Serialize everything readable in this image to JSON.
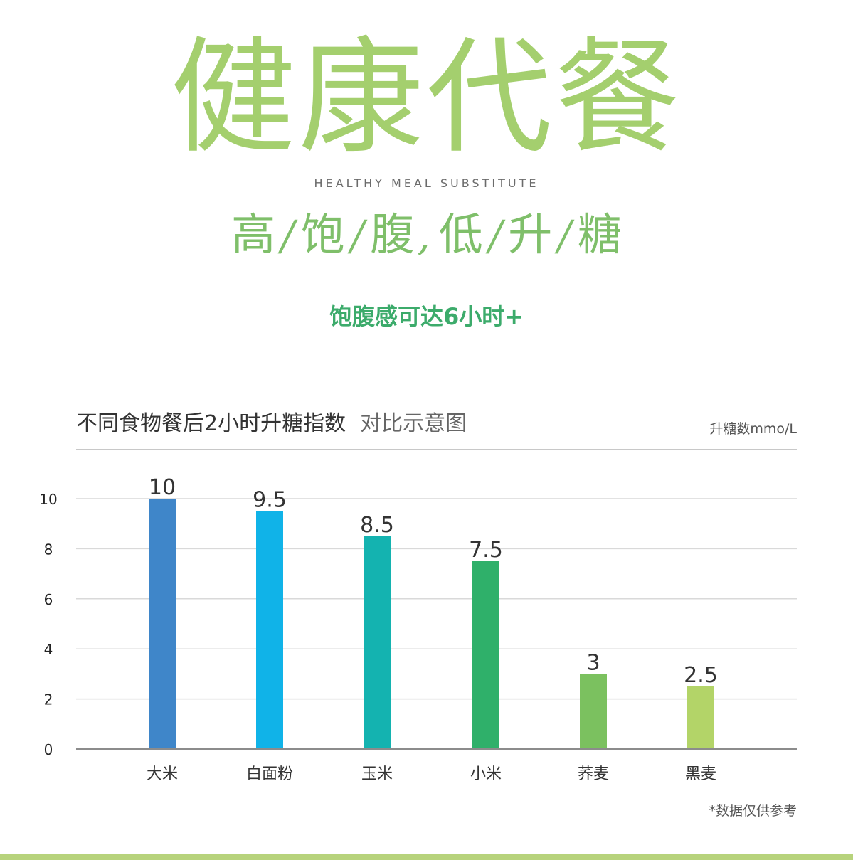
{
  "header": {
    "title": "健康代餐",
    "subtitle": "HEALTHY MEAL SUBSTITUTE",
    "slogan": [
      "高",
      "/",
      "饱",
      "/",
      "腹",
      ",",
      "低",
      "/",
      "升",
      "/",
      "糖"
    ],
    "note": "饱腹感可达6小时+"
  },
  "colors": {
    "title_green": "#a4cf6e",
    "slogan_green": "#7fbf6a",
    "note_green": "#3cab6b",
    "axis": "#8c8c8c",
    "grid": "#d9d9d9",
    "bottom_bar": "#b7d37c"
  },
  "chart_data": {
    "type": "bar",
    "title": "不同食物餐后2小时升糖指数",
    "subtitle": "对比示意图",
    "unit": "升糖数mmo/L",
    "footnote": "*数据仅供参考",
    "categories": [
      "大米",
      "白面粉",
      "玉米",
      "小米",
      "荞麦",
      "黑麦"
    ],
    "values": [
      10,
      9.5,
      8.5,
      7.5,
      3,
      2.5
    ],
    "value_labels": [
      "10",
      "9.5",
      "8.5",
      "7.5",
      "3",
      "2.5"
    ],
    "bar_colors": [
      "#3f86c9",
      "#10b3e8",
      "#14b3b0",
      "#2fb06a",
      "#7bc15f",
      "#b3d468"
    ],
    "yticks": [
      0,
      2,
      4,
      6,
      8,
      10
    ],
    "ylim": [
      0,
      10
    ],
    "grid": true,
    "legend": "none"
  }
}
